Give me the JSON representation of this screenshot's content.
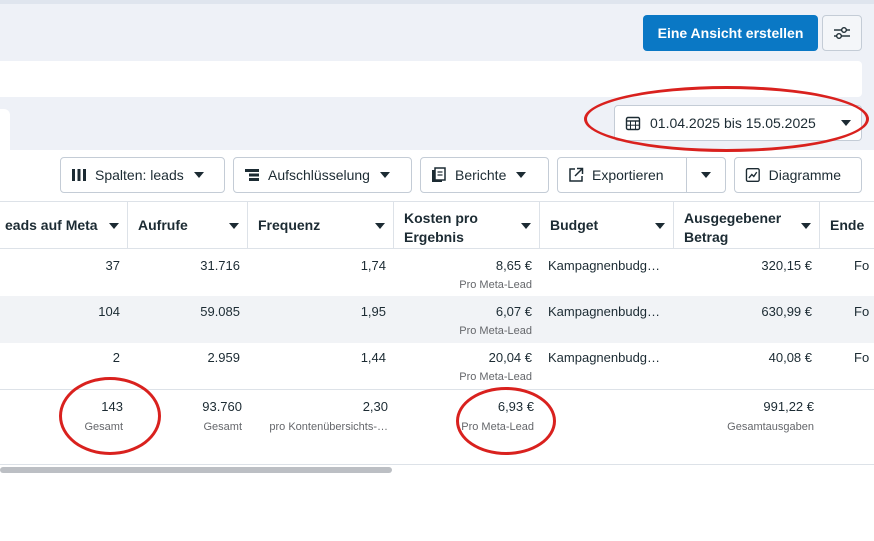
{
  "header": {
    "create_view_label": "Eine Ansicht erstellen",
    "date_range": "01.04.2025 bis 15.05.2025"
  },
  "toolbar": {
    "columns_label": "Spalten: leads",
    "breakdown_label": "Aufschlüsselung",
    "reports_label": "Berichte",
    "export_label": "Exportieren",
    "charts_label": "Diagramme"
  },
  "table": {
    "columns": [
      "eads auf Meta",
      "Aufrufe",
      "Frequenz",
      "Kosten pro Ergebnis",
      "Budget",
      "Ausgegebener Betrag",
      "Ende"
    ],
    "rows": [
      {
        "leads": "37",
        "views": "31.716",
        "freq": "1,74",
        "cost": "8,65 €",
        "cost_sub": "Pro Meta-Lead",
        "budget": "Kampagnenbudg…",
        "spent": "320,15 €",
        "end": "Fo"
      },
      {
        "leads": "104",
        "views": "59.085",
        "freq": "1,95",
        "cost": "6,07 €",
        "cost_sub": "Pro Meta-Lead",
        "budget": "Kampagnenbudg…",
        "spent": "630,99 €",
        "end": "Fo"
      },
      {
        "leads": "2",
        "views": "2.959",
        "freq": "1,44",
        "cost": "20,04 €",
        "cost_sub": "Pro Meta-Lead",
        "budget": "Kampagnenbudg…",
        "spent": "40,08 €",
        "end": "Fo"
      }
    ],
    "totals": {
      "leads": "143",
      "leads_sub": "Gesamt",
      "views": "93.760",
      "views_sub": "Gesamt",
      "freq": "2,30",
      "freq_sub": "pro Kontenübersichts-…",
      "cost": "6,93 €",
      "cost_sub": "Pro Meta-Lead",
      "spent": "991,22 €",
      "spent_sub": "Gesamtausgaben"
    }
  },
  "colors": {
    "primary": "#0a78c5",
    "annotation": "#d9211e"
  }
}
